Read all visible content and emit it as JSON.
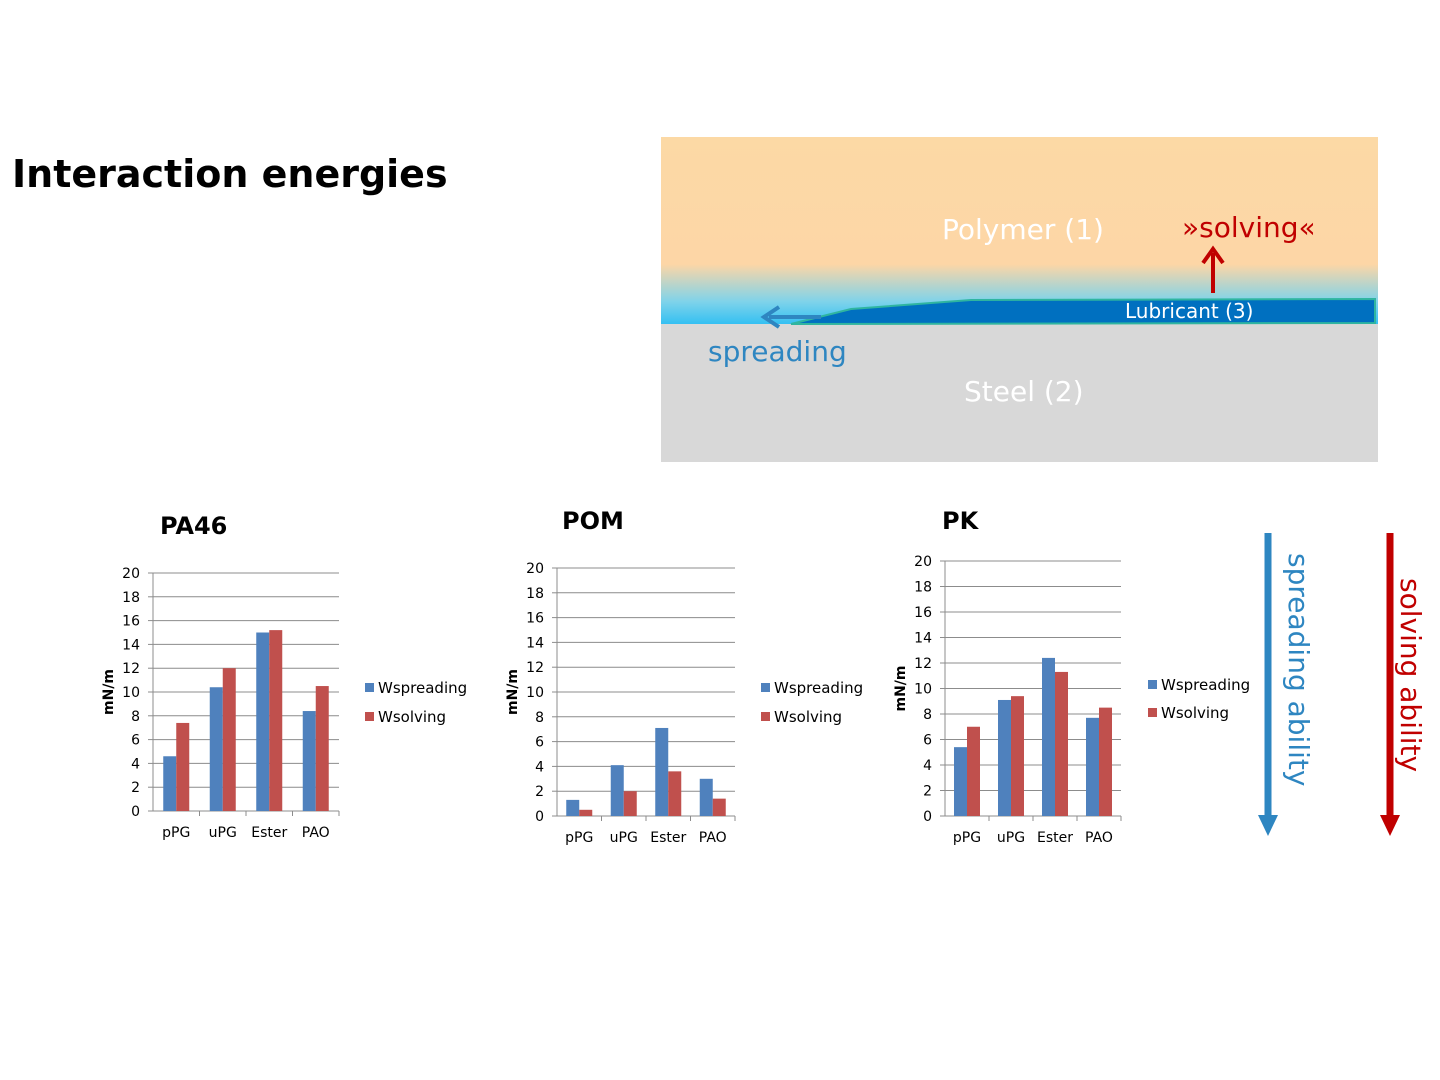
{
  "slide_title": "Interaction energies",
  "schematic": {
    "polymer_label": "Polymer (1)",
    "solving_label": "»solving«",
    "lubricant_label": "Lubricant (3)",
    "spreading_label": "spreading",
    "steel_label": "Steel (2)",
    "colors": {
      "lubricant": "#0070c0",
      "solving": "#c00000",
      "spreading": "#2e86c1",
      "steel": "#d8d8d8",
      "polymer": "#fdd6a6"
    }
  },
  "ability_arrows": {
    "spreading": {
      "label": "spreading ability",
      "color": "#2e86c1"
    },
    "solving": {
      "label": "solving ability",
      "color": "#c00000"
    }
  },
  "chart_data": [
    {
      "type": "bar",
      "title": "PA46",
      "ylabel": "mN/m",
      "xlabel": "",
      "categories": [
        "pPG",
        "uPG",
        "Ester",
        "PAO"
      ],
      "ylim": [
        0,
        20
      ],
      "yticks": [
        0,
        2,
        4,
        6,
        8,
        10,
        12,
        14,
        16,
        18,
        20
      ],
      "grid": true,
      "legend": "right",
      "series": [
        {
          "name": "Wspreading",
          "color": "#4f81bd",
          "values": [
            4.6,
            10.4,
            15.0,
            8.4
          ]
        },
        {
          "name": "Wsolving",
          "color": "#c0504d",
          "values": [
            7.4,
            12.0,
            15.2,
            10.5
          ]
        }
      ]
    },
    {
      "type": "bar",
      "title": "POM",
      "ylabel": "mN/m",
      "xlabel": "",
      "categories": [
        "pPG",
        "uPG",
        "Ester",
        "PAO"
      ],
      "ylim": [
        0,
        20
      ],
      "yticks": [
        0,
        2,
        4,
        6,
        8,
        10,
        12,
        14,
        16,
        18,
        20
      ],
      "grid": true,
      "legend": "right",
      "series": [
        {
          "name": "Wspreading",
          "color": "#4f81bd",
          "values": [
            1.3,
            4.1,
            7.1,
            3.0
          ]
        },
        {
          "name": "Wsolving",
          "color": "#c0504d",
          "values": [
            0.5,
            2.0,
            3.6,
            1.4
          ]
        }
      ]
    },
    {
      "type": "bar",
      "title": "PK",
      "ylabel": "mN/m",
      "xlabel": "",
      "categories": [
        "pPG",
        "uPG",
        "Ester",
        "PAO"
      ],
      "ylim": [
        0,
        20
      ],
      "yticks": [
        0,
        2,
        4,
        6,
        8,
        10,
        12,
        14,
        16,
        18,
        20
      ],
      "grid": true,
      "legend": "right",
      "series": [
        {
          "name": "Wspreading",
          "color": "#4f81bd",
          "values": [
            5.4,
            9.1,
            12.4,
            7.7
          ]
        },
        {
          "name": "Wsolving",
          "color": "#c0504d",
          "values": [
            7.0,
            9.4,
            11.3,
            8.5
          ]
        }
      ]
    }
  ]
}
